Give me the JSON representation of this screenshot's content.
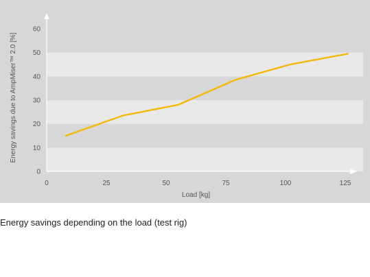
{
  "chart_data": {
    "type": "line",
    "title": "",
    "xlabel": "Load [kg]",
    "ylabel": "Energy savings due to AmpMiser™ 2.0 [%]",
    "xlim": [
      0,
      130
    ],
    "ylim": [
      0,
      65
    ],
    "xticks": [
      0,
      25,
      50,
      75,
      100,
      125
    ],
    "yticks": [
      0,
      10,
      20,
      30,
      40,
      50,
      60
    ],
    "xtick_labels": [
      "0",
      "25",
      "50",
      "75",
      "100",
      "125"
    ],
    "ytick_labels": [
      "0",
      "10",
      "20",
      "30",
      "40",
      "50",
      "60"
    ],
    "grid": "alternating horizontal bands",
    "legend": "none",
    "series": [
      {
        "x": [
          8,
          32,
          55,
          79,
          102,
          126
        ],
        "y": [
          15,
          23.5,
          28,
          38.5,
          45,
          49.5
        ]
      }
    ],
    "colors": {
      "line": "#f5b800",
      "panel": "#d7d7d7",
      "band_light": "#e9e9e9",
      "band_dark": "#d7d7d7",
      "axis": "#ffffff"
    }
  },
  "caption": "Energy savings depending on the load (test rig)"
}
